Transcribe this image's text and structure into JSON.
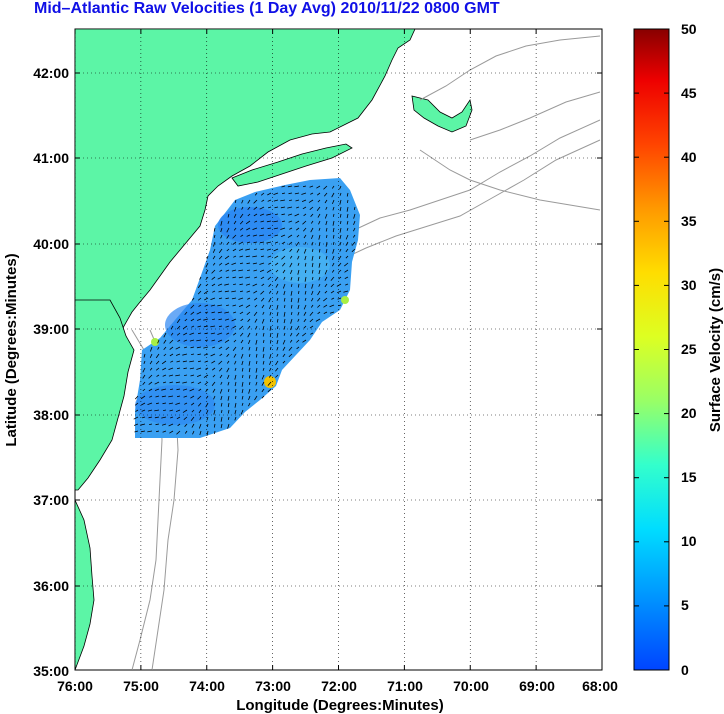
{
  "title": "Mid–Atlantic Raw Velocities (1 Day Avg) 2010/11/22 0800 GMT",
  "map": {
    "xlabel": "Longitude (Degrees:Minutes)",
    "ylabel": "Latitude (Degrees:Minutes)",
    "lon_ticks": [
      "76:00",
      "75:00",
      "74:00",
      "73:00",
      "72:00",
      "71:00",
      "70:00",
      "69:00",
      "68:00"
    ],
    "lat_ticks": [
      "42:00",
      "41:00",
      "40:00",
      "39:00",
      "38:00",
      "37:00",
      "36:00",
      "35:00"
    ],
    "lon_range": [
      -76,
      -68
    ],
    "lat_range": [
      35,
      42.5
    ],
    "grid": "dotted",
    "land_color": "#5cf5a6",
    "velocity_field_color": "#3aa0f2",
    "current_vectors": "black arrows"
  },
  "colorbar": {
    "label": "Surface Velocity (cm/s)",
    "ticks": [
      "50",
      "45",
      "40",
      "35",
      "30",
      "25",
      "20",
      "15",
      "10",
      "5",
      "0"
    ],
    "range": [
      0,
      50
    ],
    "colormap": "jet"
  }
}
